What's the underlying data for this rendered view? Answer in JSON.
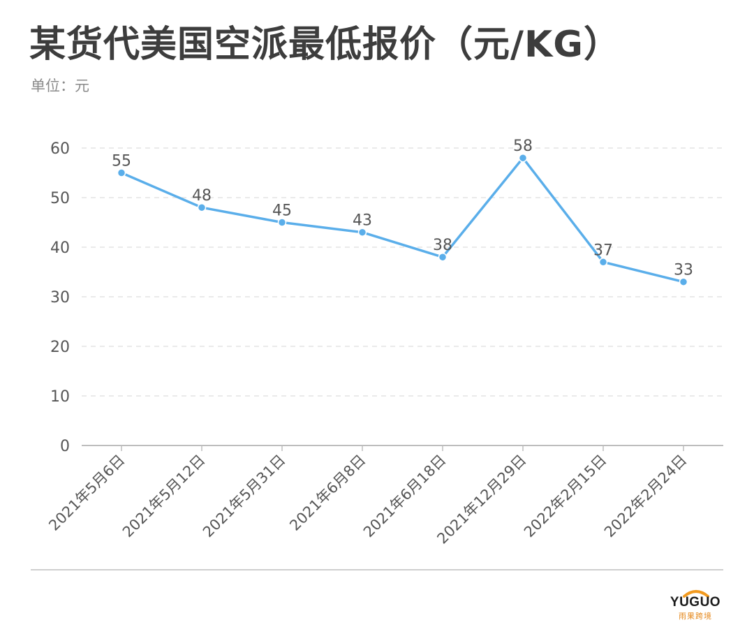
{
  "header": {
    "title": "某货代美国空派最低报价（元/KG）",
    "unit_label": "单位：元"
  },
  "colors": {
    "line": "#5aaeea",
    "point": "#5aaeea",
    "text": "#555555",
    "title": "#3d3d3d",
    "grid": "#e3e3e3",
    "logo_accent": "#f29a1f"
  },
  "logo": {
    "wordmark": "YUGUO",
    "subtitle": "雨果跨境"
  },
  "chart_data": {
    "type": "line",
    "categories": [
      "2021年5月6日",
      "2021年5月12日",
      "2021年5月31日",
      "2021年6月8日",
      "2021年6月18日",
      "2021年12月29日",
      "2022年2月15日",
      "2022年2月24日"
    ],
    "values": [
      55,
      48,
      45,
      43,
      38,
      58,
      37,
      33
    ],
    "yticks": [
      0,
      10,
      20,
      30,
      40,
      50,
      60
    ],
    "ylim": [
      0,
      60
    ],
    "grid": true,
    "data_labels": true,
    "legend": false
  }
}
